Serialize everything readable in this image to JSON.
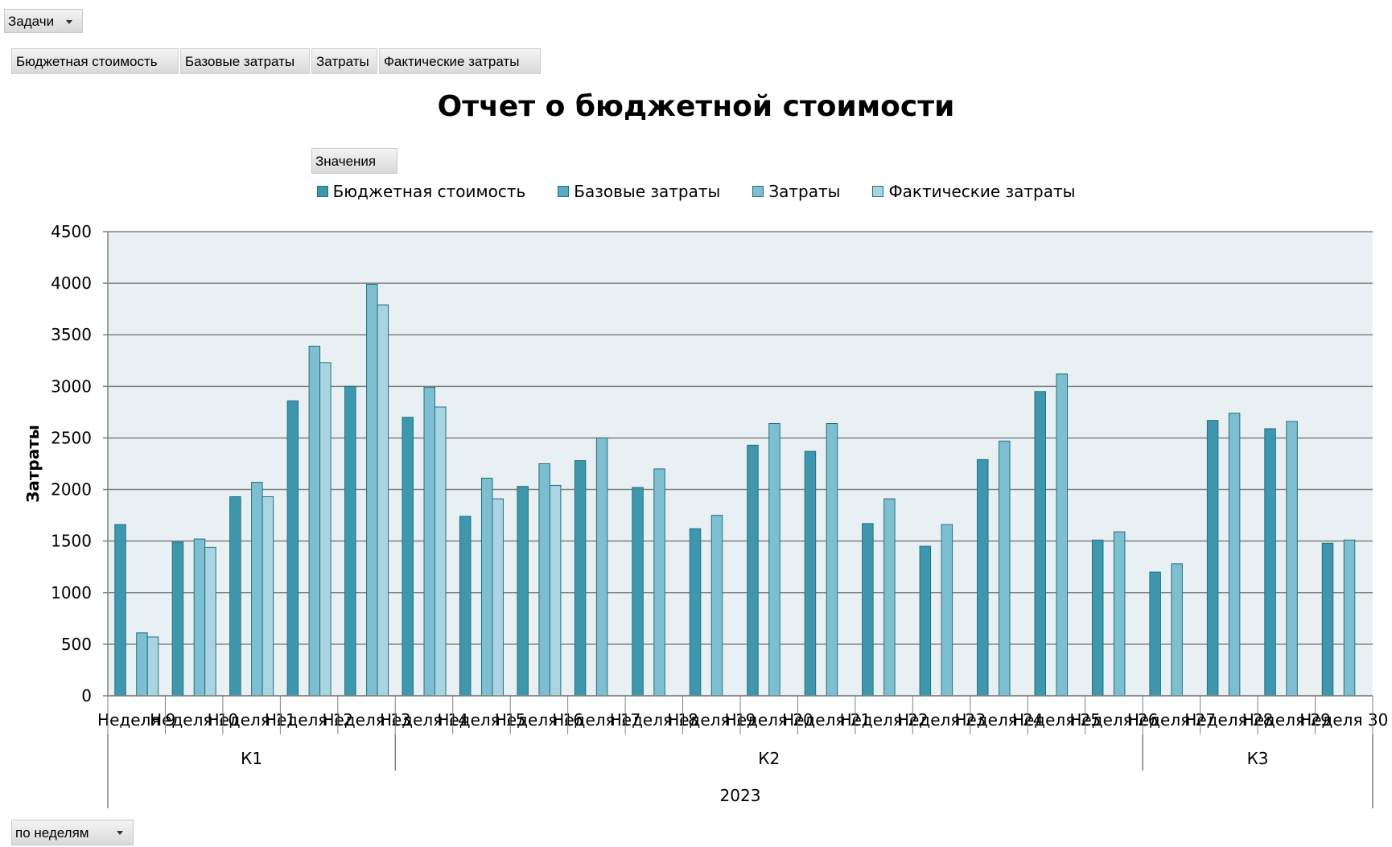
{
  "filter_tasks": {
    "label": "Задачи"
  },
  "series_buttons": [
    "Бюджетная стоимость",
    "Базовые затраты",
    "Затраты",
    "Фактические затраты"
  ],
  "values_button": "Значения",
  "period_filter": {
    "label": "по неделям"
  },
  "colors": {
    "plot_bg": "#e9f0f4",
    "grid": "#808080",
    "series": [
      "#3e97ad",
      "#5aaac1",
      "#7dbfd1",
      "#a9d4e1"
    ],
    "bar_edge": "#23707f"
  },
  "chart_data": {
    "type": "bar",
    "title": "Отчет о бюджетной стоимости",
    "ylabel": "Затраты",
    "ylim": [
      0,
      4500
    ],
    "yticks": [
      0,
      500,
      1000,
      1500,
      2000,
      2500,
      3000,
      3500,
      4000,
      4500
    ],
    "grid": true,
    "legend_position": "top",
    "categories": [
      "Неделя 9",
      "Неделя 10",
      "Неделя 11",
      "Неделя 12",
      "Неделя 13",
      "Неделя 14",
      "Неделя 15",
      "Неделя 16",
      "Неделя 17",
      "Неделя 18",
      "Неделя 19",
      "Неделя 20",
      "Неделя 21",
      "Неделя 22",
      "Неделя 23",
      "Неделя 24",
      "Неделя 25",
      "Неделя 26",
      "Неделя 27",
      "Неделя 28",
      "Неделя 29",
      "Неделя 30"
    ],
    "groups": [
      {
        "label": "К1",
        "start": 0,
        "end": 4
      },
      {
        "label": "К2",
        "start": 5,
        "end": 17
      },
      {
        "label": "К3",
        "start": 18,
        "end": 21
      }
    ],
    "year": "2023",
    "series": [
      {
        "name": "Бюджетная стоимость",
        "values": [
          1660,
          1490,
          1930,
          2860,
          3000,
          2700,
          1740,
          2030,
          2280,
          2020,
          1620,
          2430,
          2370,
          1670,
          1450,
          2290,
          2950,
          1510,
          1200,
          2670,
          2590,
          1480
        ]
      },
      {
        "name": "Базовые затраты",
        "values": [
          null,
          null,
          null,
          null,
          null,
          null,
          null,
          null,
          null,
          null,
          null,
          null,
          null,
          null,
          null,
          null,
          null,
          null,
          null,
          null,
          null,
          null
        ]
      },
      {
        "name": "Затраты",
        "values": [
          610,
          1520,
          2070,
          3390,
          3990,
          2990,
          2110,
          2250,
          2500,
          2200,
          1750,
          2640,
          2640,
          1910,
          1660,
          2470,
          3120,
          1590,
          1280,
          2740,
          2660,
          1510
        ]
      },
      {
        "name": "Фактические затраты",
        "values": [
          570,
          1440,
          1930,
          3230,
          3790,
          2800,
          1910,
          2040,
          null,
          null,
          null,
          null,
          null,
          null,
          null,
          null,
          null,
          null,
          null,
          null,
          null,
          null
        ]
      }
    ]
  }
}
